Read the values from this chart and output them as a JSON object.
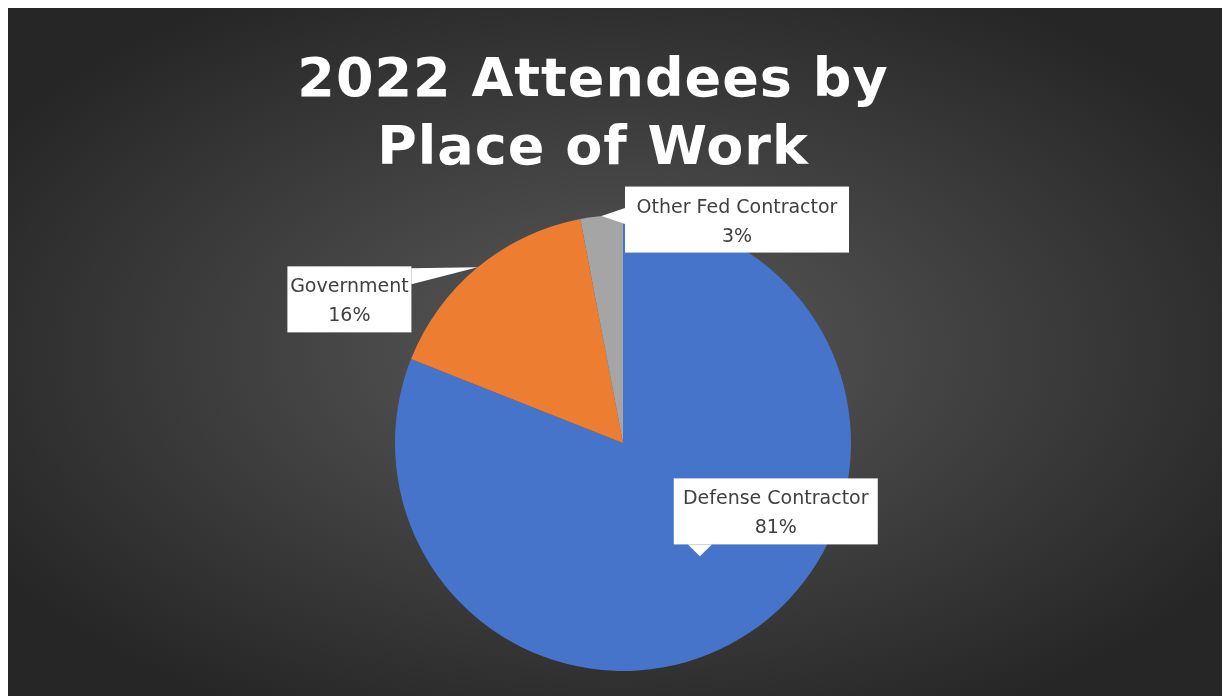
{
  "chart_data": {
    "type": "pie",
    "title": "2022 Attendees by Place of Work",
    "categories": [
      "Defense Contractor",
      "Government",
      "Other Fed Contractor"
    ],
    "values": [
      81,
      16,
      3
    ],
    "colors": [
      "#4674cb",
      "#ed7d31",
      "#a5a5a5"
    ],
    "value_labels": [
      "81%",
      "16%",
      "3%"
    ],
    "legend": false
  }
}
